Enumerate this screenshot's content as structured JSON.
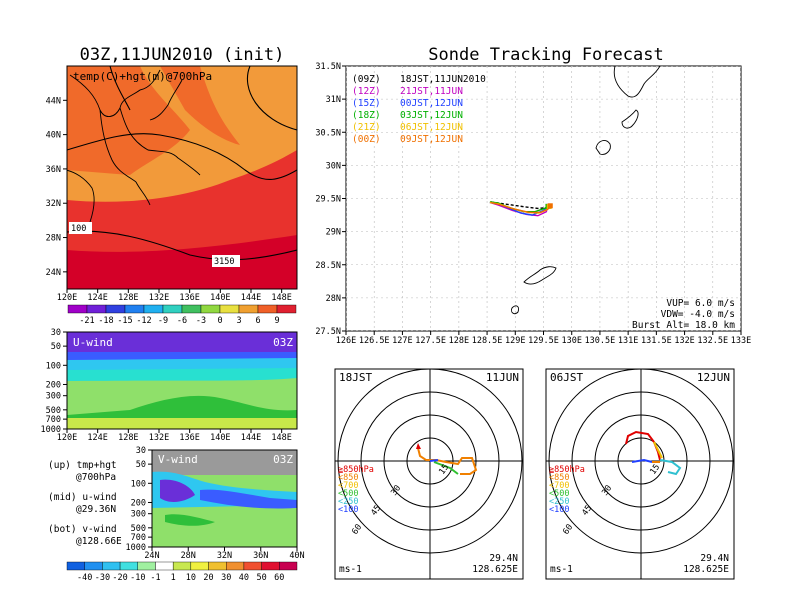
{
  "titles": {
    "left": "03Z,11JUN2010 (init)",
    "right": "Sonde Tracking Forecast"
  },
  "colors": {
    "deep_red": "#d40028",
    "red": "#e8322d",
    "orange_red": "#f06a2a",
    "orange": "#f29a3a",
    "wind_lightblue": "#2fc7f0",
    "wind_cyan": "#28e0d0",
    "wind_lightgreen": "#8fe06a",
    "wind_green": "#2fbf3a",
    "wind_purple": "#6a2fd8",
    "wind_blue": "#3a5cff",
    "wind_gray": "#9a9a9a",
    "wind_yellowgreen": "#c8e84a",
    "track_09z": "#000000",
    "track_12z": "#c000c0",
    "track_15z": "#2040ff",
    "track_18z": "#00b000",
    "track_21z": "#f0c000",
    "track_00z": "#f07000"
  },
  "temp_panel": {
    "label": "temp(C)+hgt(m)@700hPa",
    "lat_ticks": [
      "44N",
      "40N",
      "36N",
      "32N",
      "28N",
      "24N"
    ],
    "lon_ticks": [
      "120E",
      "124E",
      "128E",
      "132E",
      "136E",
      "140E",
      "144E",
      "148E"
    ],
    "contour_labels": [
      "100",
      "3150"
    ],
    "colorbar_levels": [
      "-21",
      "-18",
      "-15",
      "-12",
      "-9",
      "-6",
      "-3",
      "0",
      "3",
      "6",
      "9"
    ],
    "colorbar_colors": [
      "#a000c8",
      "#7020d8",
      "#3040e0",
      "#2080f0",
      "#20b0f0",
      "#30d0c0",
      "#40c060",
      "#90d840",
      "#e8e040",
      "#f0a030",
      "#f06028",
      "#e02030"
    ]
  },
  "u_panel": {
    "label": "U-wind",
    "time": "03Z",
    "p_ticks": [
      "30",
      "50",
      "100",
      "200",
      "300",
      "500",
      "700",
      "1000"
    ],
    "lon_ticks": [
      "120E",
      "124E",
      "128E",
      "132E",
      "136E",
      "140E",
      "144E",
      "148E"
    ]
  },
  "v_panel": {
    "label": "V-wind",
    "time": "03Z",
    "p_ticks": [
      "30",
      "50",
      "100",
      "200",
      "300",
      "500",
      "700",
      "1000"
    ],
    "lat_ticks": [
      "24N",
      "28N",
      "32N",
      "36N",
      "40N"
    ],
    "colorbar_levels": [
      "-40",
      "-30",
      "-20",
      "-10",
      "-1",
      "1",
      "10",
      "20",
      "30",
      "40",
      "50",
      "60"
    ],
    "colorbar_colors": [
      "#1060e0",
      "#2090f0",
      "#30c0f0",
      "#40e0e0",
      "#a0f0a0",
      "#ffffff",
      "#c8e850",
      "#f0f040",
      "#f0c030",
      "#f09030",
      "#f05030",
      "#e01030",
      "#c80050"
    ]
  },
  "legend_notes": [
    {
      "line1": "(up) tmp+hgt",
      "line2": "@700hPa"
    },
    {
      "line1": "(mid) u-wind",
      "line2": "@29.36N"
    },
    {
      "line1": "(bot) v-wind",
      "line2": "@128.66E"
    }
  ],
  "track_map": {
    "lat_ticks": [
      "31.5N",
      "31N",
      "30.5N",
      "30N",
      "29.5N",
      "29N",
      "28.5N",
      "28N",
      "27.5N"
    ],
    "lon_ticks": [
      "126E",
      "126.5E",
      "127E",
      "127.5E",
      "128E",
      "128.5E",
      "129E",
      "129.5E",
      "130E",
      "130.5E",
      "131E",
      "131.5E",
      "132E",
      "132.5E",
      "133E"
    ],
    "legend": [
      {
        "code": "(09Z)",
        "desc": "18JST,11JUN2010"
      },
      {
        "code": "(12Z)",
        "desc": "21JST,11JUN"
      },
      {
        "code": "(15Z)",
        "desc": "00JST,12JUN"
      },
      {
        "code": "(18Z)",
        "desc": "03JST,12JUN"
      },
      {
        "code": "(21Z)",
        "desc": "06JST,12JUN"
      },
      {
        "code": "(00Z)",
        "desc": "09JST,12JUN"
      }
    ],
    "params": [
      "VUP= 6.0 m/s",
      "VDW= -4.0 m/s",
      "Burst Alt= 18.0 km"
    ]
  },
  "hodographs": [
    {
      "jst": "18JST",
      "date": "11JUN",
      "ring_labels": [
        "15",
        "30",
        "45",
        "60"
      ],
      "pressure_legend": [
        "≧850hPa",
        "<850",
        "<700",
        "<500",
        "<250",
        "<100"
      ],
      "lat": "29.4N",
      "lon": "128.625E",
      "unit": "ms-1"
    },
    {
      "jst": "06JST",
      "date": "12JUN",
      "ring_labels": [
        "15",
        "30",
        "45",
        "60"
      ],
      "pressure_legend": [
        "≧850hPa",
        "<850",
        "<700",
        "<500",
        "<250",
        "<100"
      ],
      "lat": "29.4N",
      "lon": "128.625E",
      "unit": "ms-1"
    }
  ],
  "hodo_legend_colors": [
    "#e00000",
    "#f08000",
    "#f0c000",
    "#30c030",
    "#30c0d0",
    "#2040ff"
  ],
  "chart_data": [
    {
      "type": "heatmap",
      "title": "03Z,11JUN2010 (init)",
      "subtitle": "temp(C)+hgt(m)@700hPa",
      "xlim": [
        120,
        150
      ],
      "ylim": [
        22,
        48
      ],
      "contour_values": [
        3150
      ]
    },
    {
      "type": "heatmap",
      "title": "U-wind",
      "xlim": [
        120,
        150
      ],
      "ylabel": "hPa",
      "ylim": [
        1000,
        30
      ]
    },
    {
      "type": "heatmap",
      "title": "V-wind",
      "xlim": [
        24,
        40
      ],
      "ylabel": "hPa",
      "ylim": [
        1000,
        30
      ]
    },
    {
      "type": "line",
      "title": "Sonde Tracking Forecast",
      "xlim": [
        126,
        133
      ],
      "ylim": [
        27.5,
        31.5
      ],
      "series": [
        {
          "name": "(09Z) 18JST,11JUN2010",
          "x": [
            129.58,
            129.55,
            129.4,
            129.2,
            128.95,
            128.7,
            128.55
          ],
          "y": [
            29.38,
            29.36,
            29.35,
            29.37,
            29.4,
            29.43,
            29.45
          ]
        },
        {
          "name": "(12Z) 21JST,11JUN",
          "x": [
            129.58,
            129.55,
            129.4,
            129.2,
            128.95,
            128.7,
            128.55
          ],
          "y": [
            29.38,
            29.3,
            29.24,
            29.26,
            29.32,
            29.4,
            29.44
          ]
        },
        {
          "name": "(15Z) 00JST,12JUN",
          "x": [
            129.58,
            129.5,
            129.3,
            129.1,
            128.9,
            128.7,
            128.55
          ],
          "y": [
            29.38,
            29.32,
            29.25,
            29.28,
            29.35,
            29.42,
            29.44
          ]
        },
        {
          "name": "(18Z) 03JST,12JUN",
          "x": [
            129.58,
            129.52,
            129.35,
            129.15,
            128.9,
            128.7,
            128.55
          ],
          "y": [
            29.38,
            29.35,
            29.3,
            29.3,
            29.36,
            29.43,
            29.45
          ]
        },
        {
          "name": "(21Z) 06JST,12JUN",
          "x": [
            129.6,
            129.56,
            129.42,
            129.22,
            128.95,
            128.7,
            128.55
          ],
          "y": [
            29.38,
            29.33,
            29.28,
            29.29,
            29.35,
            29.42,
            29.44
          ]
        },
        {
          "name": "(00Z) 09JST,12JUN",
          "x": [
            129.62,
            129.58,
            129.45,
            129.25,
            128.98,
            128.72,
            128.56
          ],
          "y": [
            29.39,
            29.34,
            29.29,
            29.29,
            29.34,
            29.41,
            29.44
          ]
        }
      ]
    }
  ]
}
